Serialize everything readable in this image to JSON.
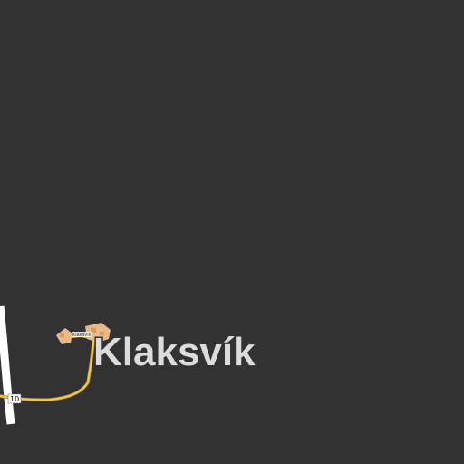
{
  "map": {
    "background_color": "#323232",
    "land_color": "#323232",
    "places": [
      {
        "name": "Klaksvík",
        "type": "town",
        "color": "#dcdcdc"
      }
    ],
    "roads": [
      {
        "ref": "10",
        "type": "primary",
        "color": "#ffffff"
      },
      {
        "ref": "",
        "type": "secondary",
        "color": "#f2c94c"
      }
    ],
    "built_up_areas": [
      {
        "color": "#e8b98a"
      },
      {
        "color": "#e8b98a"
      }
    ],
    "small_label": "Klaksvík"
  }
}
